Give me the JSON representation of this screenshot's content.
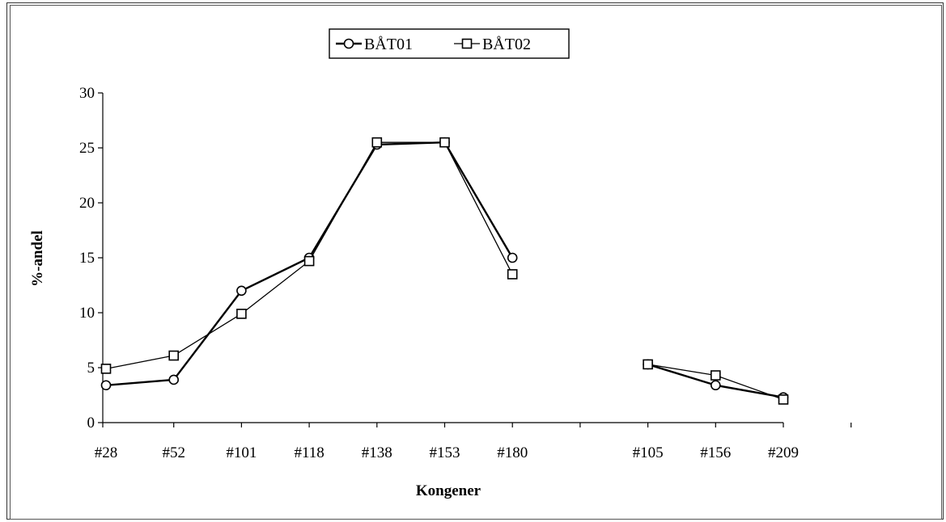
{
  "chart_data": {
    "type": "line",
    "title": "",
    "xlabel": "Kongener",
    "ylabel": "%-andel",
    "ylim": [
      0,
      30
    ],
    "yticks": [
      0,
      5,
      10,
      15,
      20,
      25,
      30
    ],
    "grid": false,
    "legend_position": "top",
    "categories": [
      "#28",
      "#52",
      "#101",
      "#118",
      "#138",
      "#153",
      "#180",
      "",
      "#105",
      "#156",
      "#209"
    ],
    "series": [
      {
        "name": "BÅT01",
        "marker": "circle",
        "values": [
          3.4,
          3.9,
          12.0,
          15.0,
          25.3,
          25.5,
          15.0,
          null,
          5.3,
          3.4,
          2.3
        ]
      },
      {
        "name": "BÅT02",
        "marker": "square",
        "values": [
          4.9,
          6.1,
          9.9,
          14.7,
          25.5,
          25.5,
          13.5,
          null,
          5.3,
          4.3,
          2.1
        ]
      }
    ]
  }
}
